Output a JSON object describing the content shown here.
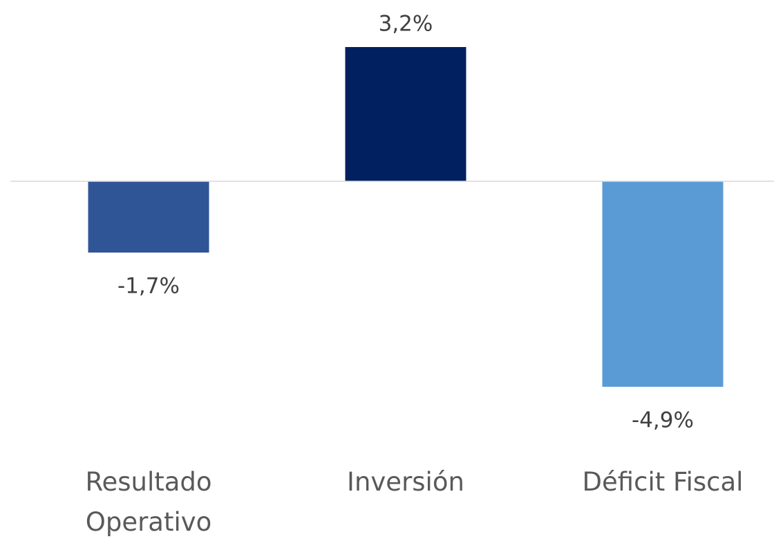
{
  "chart_data": {
    "type": "bar",
    "categories": [
      "Resultado Operativo",
      "Inversión",
      "Déficit Fiscal"
    ],
    "values": [
      -1.7,
      3.2,
      -4.9
    ],
    "value_labels": [
      "-1,7%",
      "3,2%",
      "-4,9%"
    ],
    "colors": [
      "#2f5597",
      "#002060",
      "#5b9bd5"
    ]
  }
}
